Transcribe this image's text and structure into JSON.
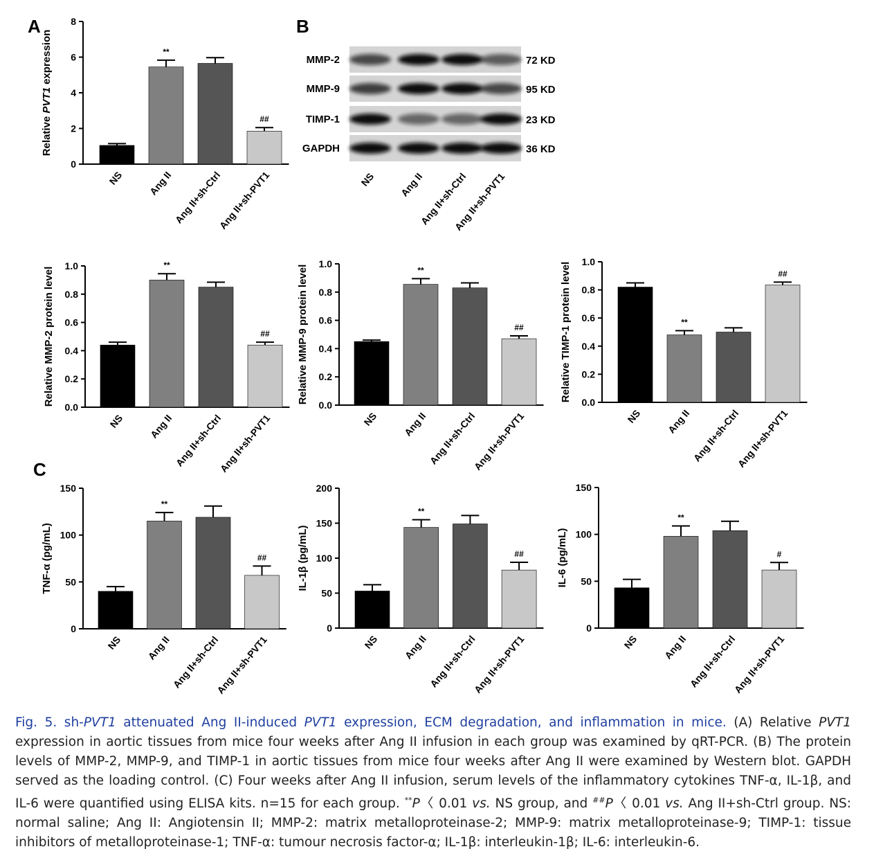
{
  "panels": [
    "A",
    "B",
    "C"
  ],
  "blot": {
    "proteins": [
      "MMP-2",
      "MMP-9",
      "TIMP-1",
      "GAPDH"
    ],
    "sizes": [
      "72 KD",
      "95 KD",
      "23 KD",
      "36 KD"
    ],
    "categories": [
      "NS",
      "Ang II",
      "Ang II+sh-Ctrl",
      "Ang II+sh-PVT1"
    ]
  },
  "chart_data": [
    {
      "type": "bar",
      "ylabel": [
        "Relative ",
        "PVT1",
        " expression"
      ],
      "categories": [
        "NS",
        "Ang II",
        "Ang II+sh-Ctrl",
        "Ang II+sh-PVT1"
      ],
      "values": [
        1.05,
        5.45,
        5.65,
        1.85
      ],
      "errors": [
        0.1,
        0.38,
        0.32,
        0.2
      ],
      "annotations": [
        null,
        "**",
        null,
        "##"
      ],
      "colors": [
        "#000000",
        "#808080",
        "#555555",
        "#c8c8c8"
      ],
      "ylim": [
        0,
        8
      ],
      "yticks": [
        0,
        2,
        4,
        6,
        8
      ]
    },
    {
      "type": "bar",
      "ylabel": "Relative MMP-2 protein level",
      "categories": [
        "NS",
        "Ang II",
        "Ang II+sh-Ctrl",
        "Ang II+sh-PVT1"
      ],
      "values": [
        0.44,
        0.9,
        0.85,
        0.44
      ],
      "errors": [
        0.02,
        0.045,
        0.035,
        0.02
      ],
      "annotations": [
        null,
        "**",
        null,
        "##"
      ],
      "colors": [
        "#000000",
        "#808080",
        "#555555",
        "#c8c8c8"
      ],
      "ylim": [
        0,
        1.0
      ],
      "yticks": [
        {
          "value": 0,
          "label": "0.0"
        },
        0.2,
        0.4,
        0.6,
        0.8,
        {
          "value": 1,
          "label": "1.0"
        }
      ]
    },
    {
      "type": "bar",
      "ylabel": "Relative MMP-9 protein level",
      "categories": [
        "NS",
        "Ang II",
        "Ang II+sh-Ctrl",
        "Ang II+sh-PVT1"
      ],
      "values": [
        0.45,
        0.855,
        0.83,
        0.47
      ],
      "errors": [
        0.01,
        0.04,
        0.035,
        0.02
      ],
      "annotations": [
        null,
        "**",
        null,
        "##"
      ],
      "colors": [
        "#000000",
        "#808080",
        "#555555",
        "#c8c8c8"
      ],
      "ylim": [
        0,
        1.0
      ],
      "yticks": [
        {
          "value": 0,
          "label": "0.0"
        },
        0.2,
        0.4,
        0.6,
        0.8,
        {
          "value": 1,
          "label": "1.0"
        }
      ]
    },
    {
      "type": "bar",
      "ylabel": "Relative TIMP-1 protein level",
      "categories": [
        "NS",
        "Ang II",
        "Ang II+sh-Ctrl",
        "Ang II+sh-PVT1"
      ],
      "values": [
        0.82,
        0.48,
        0.5,
        0.835
      ],
      "errors": [
        0.03,
        0.03,
        0.03,
        0.02
      ],
      "annotations": [
        null,
        "**",
        null,
        "##"
      ],
      "colors": [
        "#000000",
        "#808080",
        "#555555",
        "#c8c8c8"
      ],
      "ylim": [
        0,
        1.0
      ],
      "yticks": [
        {
          "value": 0,
          "label": "0.0"
        },
        0.2,
        0.4,
        0.6,
        0.8,
        {
          "value": 1,
          "label": "1.0"
        }
      ]
    },
    {
      "type": "bar",
      "ylabel": "TNF-α (pg/mL)",
      "categories": [
        "NS",
        "Ang II",
        "Ang II+sh-Ctrl",
        "Ang II+sh-PVT1"
      ],
      "values": [
        40,
        115,
        119,
        57
      ],
      "errors": [
        5,
        9,
        12,
        10
      ],
      "annotations": [
        null,
        "**",
        null,
        "##"
      ],
      "colors": [
        "#000000",
        "#808080",
        "#555555",
        "#c8c8c8"
      ],
      "ylim": [
        0,
        150
      ],
      "yticks": [
        0,
        50,
        100,
        150
      ]
    },
    {
      "type": "bar",
      "ylabel": "IL-1β (pg/mL)",
      "categories": [
        "NS",
        "Ang II",
        "Ang II+sh-Ctrl",
        "Ang II+sh-PVT1"
      ],
      "values": [
        53,
        144,
        149,
        83
      ],
      "errors": [
        9,
        11,
        12,
        11
      ],
      "annotations": [
        null,
        "**",
        null,
        "##"
      ],
      "colors": [
        "#000000",
        "#808080",
        "#555555",
        "#c8c8c8"
      ],
      "ylim": [
        0,
        200
      ],
      "yticks": [
        0,
        50,
        100,
        150,
        200
      ]
    },
    {
      "type": "bar",
      "ylabel": "IL-6 (pg/mL)",
      "categories": [
        "NS",
        "Ang II",
        "Ang II+sh-Ctrl",
        "Ang II+sh-PVT1"
      ],
      "values": [
        43,
        98,
        104,
        62
      ],
      "errors": [
        9,
        11,
        10,
        8
      ],
      "annotations": [
        null,
        "**",
        null,
        "#"
      ],
      "colors": [
        "#000000",
        "#808080",
        "#555555",
        "#c8c8c8"
      ],
      "ylim": [
        0,
        150
      ],
      "yticks": [
        0,
        50,
        100,
        150
      ]
    }
  ],
  "caption": [
    "Fig. 5. sh-",
    "PVT1",
    " attenuated Ang II-induced ",
    "PVT1",
    " expression, ECM degradation, and inflammation in mice.",
    " (A) Relative ",
    "PVT1",
    " expression in aortic tissues from mice four weeks after Ang II infusion in each group was examined by qRT-PCR. (B) The protein levels of MMP-2, MMP-9, and TIMP-1 in aortic tissues from mice four weeks after Ang II were examined by Western blot. GAPDH served as the loading control. (C) Four weeks after Ang II infusion, serum levels of the inflammatory cytokines TNF-α, IL-1β, and IL-6 were quantified using ELISA kits. n=15 for each group. ",
    "**",
    "P",
    "〈 0.01 ",
    "vs.",
    " NS group, and ",
    "##",
    "P",
    "〈 0.01 ",
    "vs.",
    " Ang II+sh-Ctrl group. NS: normal saline; Ang II: Angiotensin II; MMP-2: matrix metalloproteinase-2; MMP-9: matrix metalloproteinase-9; TIMP-1: tissue inhibitors of metalloproteinase-1; TNF-α: tumour necrosis factor-α; IL-1β: interleukin-1β; IL-6: interleukin-6."
  ]
}
